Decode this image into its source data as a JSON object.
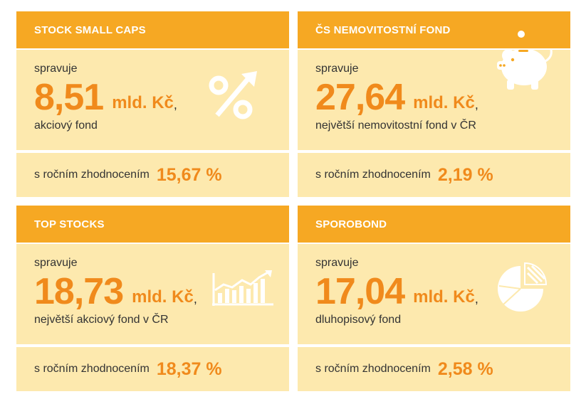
{
  "cards": [
    {
      "title": "STOCK SMALL CAPS",
      "manages_label": "spravuje",
      "amount": "8,51",
      "unit": "mld. Kč",
      "comma": ",",
      "description": "akciový fond",
      "return_label": "s ročním zhodnocením",
      "return_value": "15,67 %",
      "icon": "percent-growth-icon"
    },
    {
      "title": "ČS NEMOVITOSTNÍ FOND",
      "manages_label": "spravuje",
      "amount": "27,64",
      "unit": "mld. Kč",
      "comma": ",",
      "description": "největší nemovitostní fond v ČR",
      "return_label": "s ročním zhodnocením",
      "return_value": "2,19 %",
      "icon": "piggy-bank-icon"
    },
    {
      "title": "TOP STOCKS",
      "manages_label": "spravuje",
      "amount": "18,73",
      "unit": "mld. Kč",
      "comma": ",",
      "description": "největší akciový fond v ČR",
      "return_label": "s ročním zhodnocením",
      "return_value": "18,37 %",
      "icon": "growth-chart-icon"
    },
    {
      "title": "SPOROBOND",
      "manages_label": "spravuje",
      "amount": "17,04",
      "unit": "mld. Kč",
      "comma": ",",
      "description": "dluhopisový fond",
      "return_label": "s ročním zhodnocením",
      "return_value": "2,58 %",
      "icon": "pie-chart-icon"
    }
  ],
  "colors": {
    "header": "#f6a823",
    "panel": "#fde9ae",
    "accent": "#f08a1c",
    "text": "#333333"
  }
}
